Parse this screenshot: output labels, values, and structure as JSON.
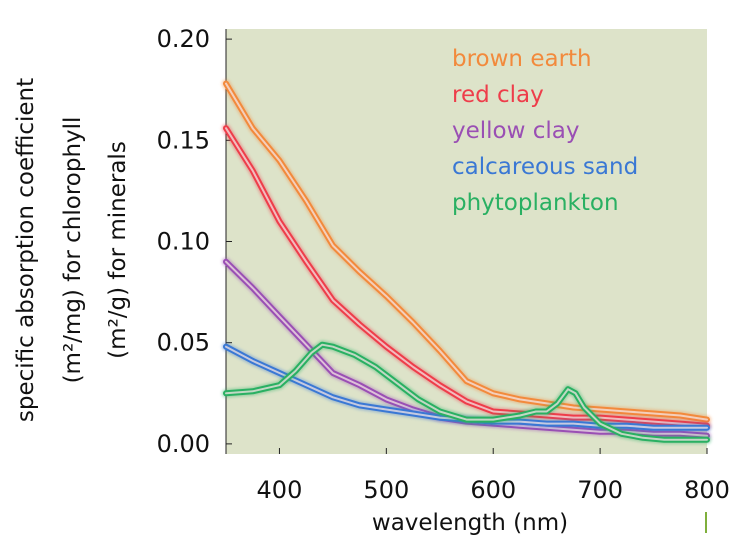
{
  "chart_data": {
    "type": "line",
    "xlabel": "wavelength (nm)",
    "ylabel_line1": "specific absorption coefficient",
    "ylabel_line2": "(m²/mg) for chlorophyll",
    "ylabel_line3": "(m²/g) for minerals",
    "xlim": [
      350,
      800
    ],
    "ylim": [
      -0.005,
      0.205
    ],
    "xticks": [
      400,
      500,
      600,
      700,
      800
    ],
    "yticks": [
      0.0,
      0.05,
      0.1,
      0.15,
      0.2
    ],
    "ytick_labels": [
      "0.00",
      "0.05",
      "0.10",
      "0.15",
      "0.20"
    ],
    "grid": false,
    "legend_position": "top-right",
    "plot_background": "#dde3c9",
    "series": [
      {
        "name": "brown earth",
        "color": "#f28a3c",
        "x": [
          350,
          375,
          400,
          425,
          450,
          475,
          500,
          525,
          550,
          575,
          600,
          625,
          650,
          675,
          700,
          725,
          750,
          775,
          800
        ],
        "y": [
          0.178,
          0.156,
          0.14,
          0.12,
          0.098,
          0.085,
          0.073,
          0.06,
          0.046,
          0.031,
          0.025,
          0.022,
          0.02,
          0.018,
          0.017,
          0.016,
          0.015,
          0.014,
          0.012
        ]
      },
      {
        "name": "red clay",
        "color": "#ee3d4a",
        "x": [
          350,
          375,
          400,
          425,
          450,
          475,
          500,
          525,
          550,
          575,
          600,
          625,
          650,
          675,
          700,
          725,
          750,
          775,
          800
        ],
        "y": [
          0.156,
          0.135,
          0.11,
          0.09,
          0.071,
          0.059,
          0.048,
          0.038,
          0.029,
          0.021,
          0.016,
          0.015,
          0.014,
          0.013,
          0.013,
          0.012,
          0.011,
          0.01,
          0.009
        ]
      },
      {
        "name": "yellow clay",
        "color": "#9a4fb4",
        "x": [
          350,
          375,
          400,
          425,
          450,
          475,
          500,
          525,
          550,
          575,
          600,
          625,
          650,
          675,
          700,
          725,
          750,
          775,
          800
        ],
        "y": [
          0.09,
          0.077,
          0.063,
          0.049,
          0.035,
          0.029,
          0.022,
          0.017,
          0.013,
          0.011,
          0.01,
          0.009,
          0.008,
          0.007,
          0.006,
          0.006,
          0.005,
          0.005,
          0.004
        ]
      },
      {
        "name": "calcareous sand",
        "color": "#3a78d4",
        "x": [
          350,
          375,
          400,
          425,
          450,
          475,
          500,
          525,
          550,
          575,
          600,
          625,
          650,
          675,
          700,
          725,
          750,
          775,
          800
        ],
        "y": [
          0.048,
          0.041,
          0.035,
          0.029,
          0.023,
          0.019,
          0.017,
          0.015,
          0.013,
          0.012,
          0.011,
          0.011,
          0.01,
          0.01,
          0.009,
          0.009,
          0.008,
          0.008,
          0.008
        ]
      },
      {
        "name": "phytoplankton",
        "color": "#29b062",
        "x": [
          350,
          375,
          400,
          415,
          430,
          440,
          450,
          470,
          490,
          510,
          530,
          550,
          575,
          600,
          625,
          640,
          650,
          660,
          670,
          677,
          685,
          700,
          720,
          740,
          760,
          780,
          800
        ],
        "y": [
          0.025,
          0.026,
          0.029,
          0.036,
          0.045,
          0.049,
          0.048,
          0.044,
          0.038,
          0.03,
          0.022,
          0.016,
          0.012,
          0.012,
          0.014,
          0.016,
          0.016,
          0.02,
          0.027,
          0.025,
          0.018,
          0.01,
          0.005,
          0.003,
          0.002,
          0.002,
          0.002
        ]
      }
    ]
  }
}
